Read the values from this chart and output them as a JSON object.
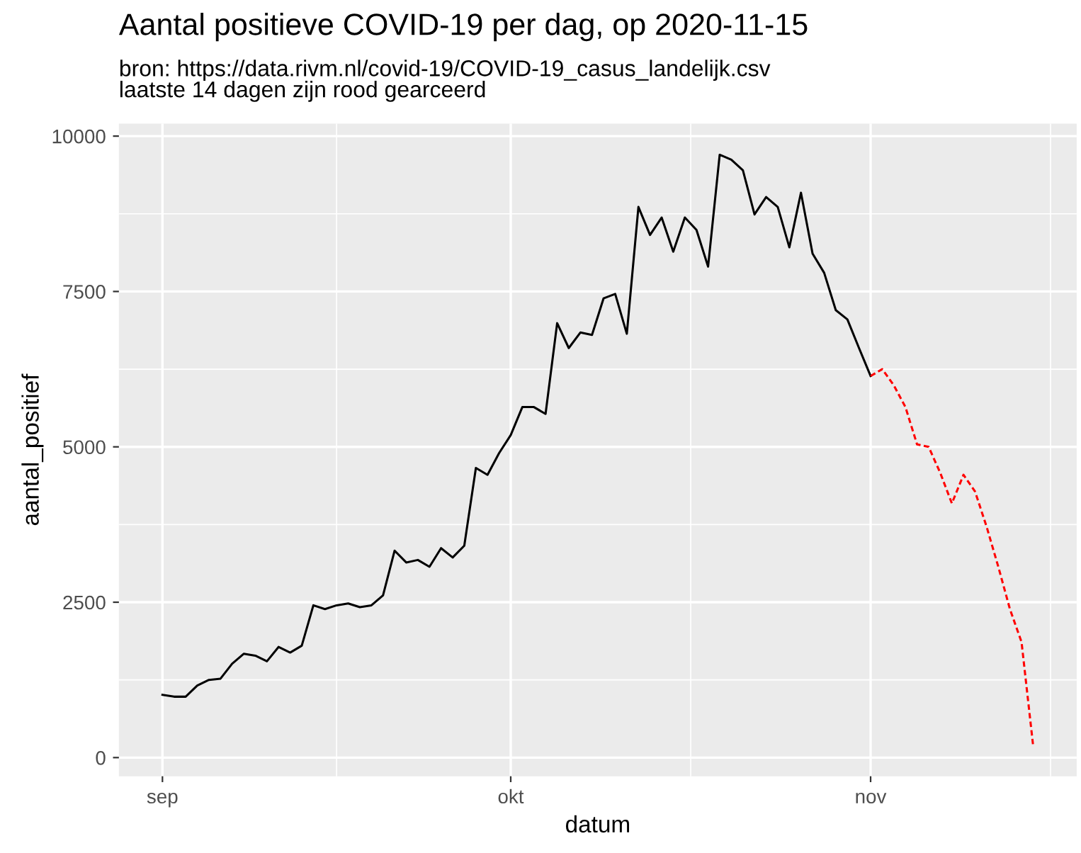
{
  "chart_data": {
    "type": "line",
    "title": "Aantal positieve COVID-19 per dag, op 2020-11-15",
    "subtitle": "bron: https://data.rivm.nl/covid-19/COVID-19_casus_landelijk.csv\nlaatste 14 dagen zijn rood gearceerd",
    "xlabel": "datum",
    "ylabel": "aantal_positief",
    "series": [
      {
        "color": "#000000",
        "line_style": "solid",
        "x": [
          "2020-09-01",
          "2020-09-02",
          "2020-09-03",
          "2020-09-04",
          "2020-09-05",
          "2020-09-06",
          "2020-09-07",
          "2020-09-08",
          "2020-09-09",
          "2020-09-10",
          "2020-09-11",
          "2020-09-12",
          "2020-09-13",
          "2020-09-14",
          "2020-09-15",
          "2020-09-16",
          "2020-09-17",
          "2020-09-18",
          "2020-09-19",
          "2020-09-20",
          "2020-09-21",
          "2020-09-22",
          "2020-09-23",
          "2020-09-24",
          "2020-09-25",
          "2020-09-26",
          "2020-09-27",
          "2020-09-28",
          "2020-09-29",
          "2020-09-30",
          "2020-10-01",
          "2020-10-02",
          "2020-10-03",
          "2020-10-04",
          "2020-10-05",
          "2020-10-06",
          "2020-10-07",
          "2020-10-08",
          "2020-10-09",
          "2020-10-10",
          "2020-10-11",
          "2020-10-12",
          "2020-10-13",
          "2020-10-14",
          "2020-10-15",
          "2020-10-16",
          "2020-10-17",
          "2020-10-18",
          "2020-10-19",
          "2020-10-20",
          "2020-10-21",
          "2020-10-22",
          "2020-10-23",
          "2020-10-24",
          "2020-10-25",
          "2020-10-26",
          "2020-10-27",
          "2020-10-28",
          "2020-10-29",
          "2020-10-30",
          "2020-10-31",
          "2020-11-01"
        ],
        "values": [
          1010,
          980,
          980,
          1160,
          1250,
          1270,
          1510,
          1670,
          1640,
          1550,
          1780,
          1690,
          1800,
          2450,
          2390,
          2450,
          2480,
          2420,
          2450,
          2610,
          3330,
          3140,
          3180,
          3070,
          3370,
          3220,
          3410,
          4660,
          4550,
          4900,
          5190,
          5640,
          5640,
          5530,
          6990,
          6590,
          6840,
          6800,
          7390,
          7460,
          6820,
          8860,
          8410,
          8690,
          8140,
          8690,
          8490,
          7900,
          9700,
          9620,
          9450,
          8740,
          9020,
          8860,
          8210,
          9090,
          8110,
          7800,
          7200,
          7050,
          6590,
          6140
        ]
      },
      {
        "color": "#ff0000",
        "line_style": "dashed",
        "x": [
          "2020-11-01",
          "2020-11-02",
          "2020-11-03",
          "2020-11-04",
          "2020-11-05",
          "2020-11-06",
          "2020-11-07",
          "2020-11-08",
          "2020-11-09",
          "2020-11-10",
          "2020-11-11",
          "2020-11-12",
          "2020-11-13",
          "2020-11-14",
          "2020-11-15"
        ],
        "values": [
          6140,
          6250,
          5990,
          5640,
          5040,
          5000,
          4580,
          4090,
          4550,
          4280,
          3710,
          3070,
          2390,
          1860,
          190
        ]
      }
    ],
    "xlim": [
      "2020-08-28T06:00",
      "2020-11-18T18:00"
    ],
    "xticks": [
      {
        "value": "2020-09-01",
        "label": "sep"
      },
      {
        "value": "2020-10-01",
        "label": "okt"
      },
      {
        "value": "2020-11-01",
        "label": "nov"
      }
    ],
    "ylim": [
      -300,
      10200
    ],
    "yticks": [
      0,
      2500,
      5000,
      7500,
      10000
    ],
    "grid": true,
    "marker": "none"
  }
}
